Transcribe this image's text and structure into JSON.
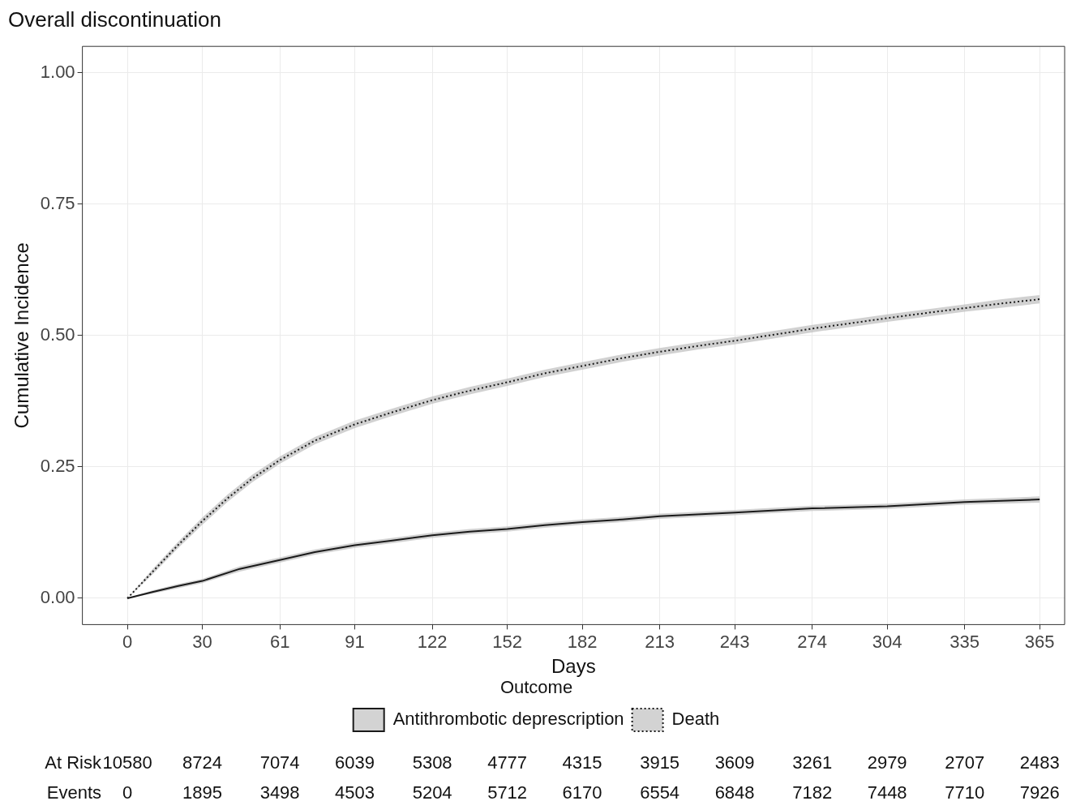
{
  "chart_data": {
    "type": "line",
    "title": "Overall discontinuation",
    "xlabel": "Days",
    "ylabel": "Cumulative Incidence",
    "legend_title": "Outcome",
    "xlim": [
      -18,
      375
    ],
    "ylim": [
      -0.05,
      1.05
    ],
    "xticks": [
      0,
      30,
      61,
      91,
      122,
      152,
      182,
      213,
      243,
      274,
      304,
      335,
      365
    ],
    "yticks": [
      {
        "value": 0,
        "label": "0.00"
      },
      {
        "value": 0.25,
        "label": "0.25"
      },
      {
        "value": 0.5,
        "label": "0.50"
      },
      {
        "value": 0.75,
        "label": "0.75"
      },
      {
        "value": 1,
        "label": "1.00"
      }
    ],
    "grid": true,
    "legend": "bottom",
    "marker": "none",
    "series": [
      {
        "name": "Antithrombotic deprescription",
        "color": "#1a1a1a",
        "line_style": "solid",
        "x": [
          0,
          10,
          20,
          30,
          45,
          61,
          75,
          91,
          106,
          122,
          137,
          152,
          167,
          182,
          198,
          213,
          243,
          274,
          304,
          335,
          365
        ],
        "values": [
          0,
          0.012,
          0.023,
          0.033,
          0.056,
          0.073,
          0.088,
          0.101,
          0.11,
          0.12,
          0.127,
          0.132,
          0.139,
          0.145,
          0.15,
          0.156,
          0.163,
          0.171,
          0.175,
          0.183,
          0.188
        ],
        "lower": [
          0,
          0.009,
          0.019,
          0.029,
          0.051,
          0.068,
          0.083,
          0.096,
          0.105,
          0.115,
          0.122,
          0.127,
          0.134,
          0.14,
          0.145,
          0.151,
          0.158,
          0.166,
          0.17,
          0.178,
          0.182
        ],
        "upper": [
          0,
          0.015,
          0.027,
          0.037,
          0.061,
          0.078,
          0.093,
          0.106,
          0.115,
          0.125,
          0.132,
          0.137,
          0.144,
          0.15,
          0.155,
          0.161,
          0.168,
          0.176,
          0.18,
          0.188,
          0.194
        ]
      },
      {
        "name": "Death",
        "color": "#1a1a1a",
        "line_style": "dotted",
        "x": [
          0,
          10,
          20,
          30,
          40,
          50,
          61,
          75,
          91,
          106,
          122,
          137,
          152,
          167,
          182,
          198,
          213,
          228,
          243,
          258,
          274,
          289,
          304,
          320,
          335,
          350,
          365
        ],
        "values": [
          0,
          0.05,
          0.1,
          0.147,
          0.19,
          0.228,
          0.263,
          0.3,
          0.331,
          0.354,
          0.377,
          0.395,
          0.411,
          0.428,
          0.442,
          0.457,
          0.469,
          0.48,
          0.49,
          0.501,
          0.513,
          0.523,
          0.533,
          0.543,
          0.552,
          0.561,
          0.569
        ],
        "lower": [
          0,
          0.045,
          0.094,
          0.14,
          0.183,
          0.221,
          0.256,
          0.293,
          0.324,
          0.347,
          0.37,
          0.388,
          0.404,
          0.421,
          0.435,
          0.45,
          0.462,
          0.473,
          0.483,
          0.494,
          0.506,
          0.516,
          0.526,
          0.536,
          0.545,
          0.553,
          0.561
        ],
        "upper": [
          0,
          0.055,
          0.106,
          0.154,
          0.197,
          0.235,
          0.27,
          0.307,
          0.338,
          0.361,
          0.384,
          0.402,
          0.418,
          0.435,
          0.449,
          0.464,
          0.476,
          0.487,
          0.497,
          0.508,
          0.52,
          0.53,
          0.54,
          0.55,
          0.559,
          0.569,
          0.577
        ]
      }
    ],
    "annotations": [
      "At Risk",
      "10580",
      "8724",
      "7074",
      "6039",
      "5308",
      "4777",
      "4315",
      "3915",
      "3609",
      "3261",
      "2979",
      "2707",
      "2483",
      "Events",
      "0",
      "1895",
      "3498",
      "4503",
      "5204",
      "5712",
      "6170",
      "6554",
      "6848",
      "7182",
      "7448",
      "7710",
      "7926"
    ]
  }
}
